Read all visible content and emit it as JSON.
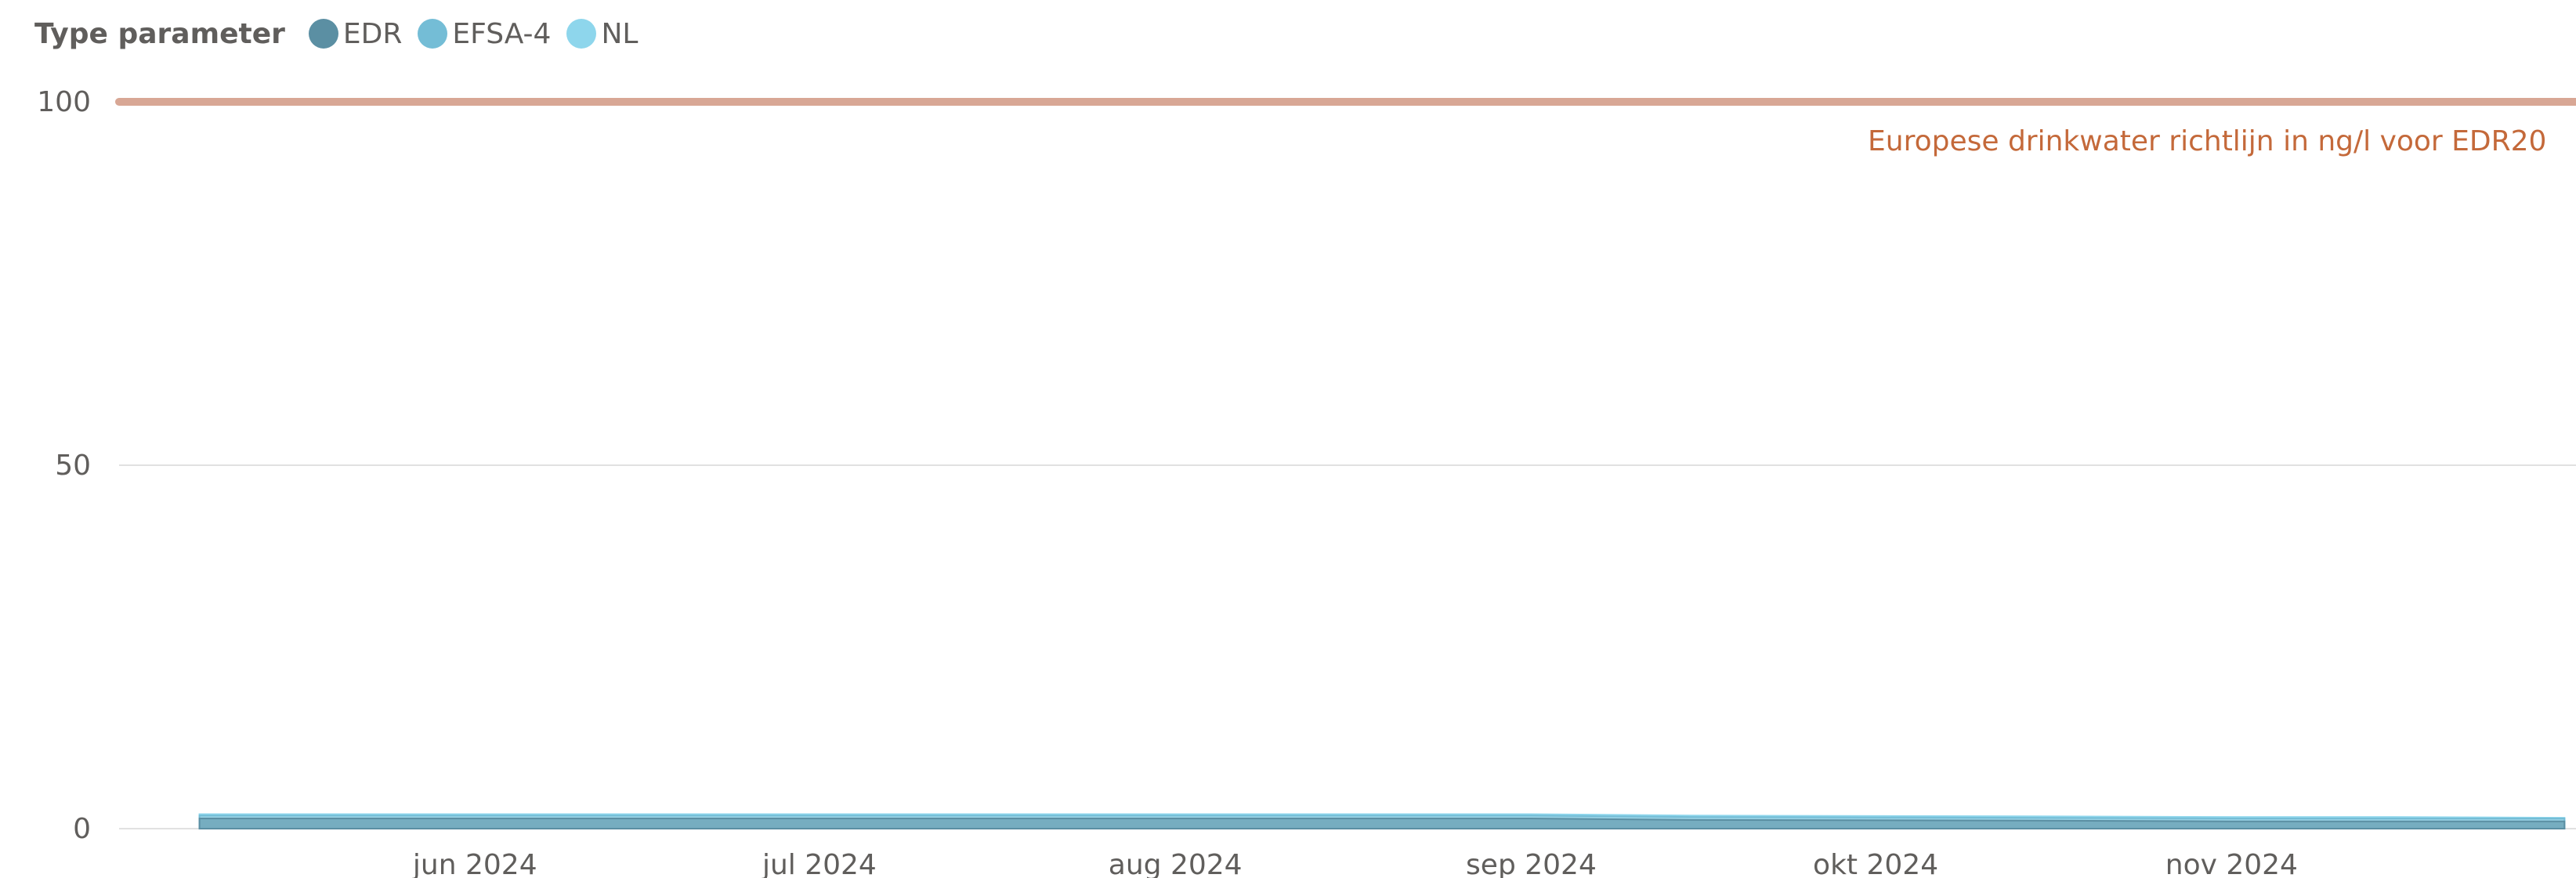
{
  "legend": {
    "title": "Type parameter",
    "items": [
      {
        "label": "EDR",
        "color": "#5b8fa3"
      },
      {
        "label": "EFSA-4",
        "color": "#74bdd6"
      },
      {
        "label": "NL",
        "color": "#8ed6ec"
      }
    ]
  },
  "chart_data": {
    "type": "area",
    "x": [
      "2024-05-08",
      "2024-06-15",
      "2024-07-15",
      "2024-08-15",
      "2024-09-01",
      "2024-09-15",
      "2024-10-15",
      "2024-11-01",
      "2024-11-15",
      "2024-11-30"
    ],
    "series": [
      {
        "name": "EDR",
        "color": "#5b8fa3",
        "values": [
          1.4,
          1.4,
          1.4,
          1.4,
          1.4,
          1.2,
          1.1,
          1.0,
          1.0,
          1.0
        ]
      },
      {
        "name": "EFSA-4",
        "color": "#74bdd6",
        "values": [
          1.8,
          1.8,
          1.8,
          1.8,
          1.8,
          1.6,
          1.5,
          1.4,
          1.4,
          1.4
        ]
      },
      {
        "name": "NL",
        "color": "#8ed6ec",
        "values": [
          2.0,
          2.0,
          2.0,
          2.0,
          2.0,
          1.8,
          1.7,
          1.6,
          1.6,
          1.5
        ]
      }
    ],
    "xlim": [
      "2024-05-01",
      "2024-12-01"
    ],
    "ylim": [
      0,
      100
    ],
    "y_ticks": [
      0,
      50,
      100
    ],
    "x_ticks": [
      {
        "date": "2024-06-01",
        "label": "jun 2024"
      },
      {
        "date": "2024-07-01",
        "label": "jul 2024"
      },
      {
        "date": "2024-08-01",
        "label": "aug 2024"
      },
      {
        "date": "2024-09-01",
        "label": "sep 2024"
      },
      {
        "date": "2024-10-01",
        "label": "okt 2024"
      },
      {
        "date": "2024-11-01",
        "label": "nov 2024"
      }
    ],
    "reference_line": {
      "value": 100,
      "label": "Europese drinkwater richtlijn in ng/l voor EDR20",
      "color": "#d8a795",
      "label_color": "#c4693a"
    },
    "grid": true,
    "legend_position": "top-left"
  }
}
